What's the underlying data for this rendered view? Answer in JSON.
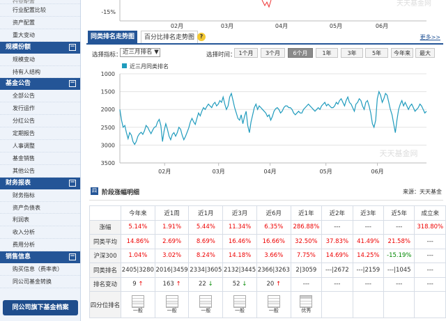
{
  "left_menu": {
    "cut_top": "行业配置",
    "group1": [
      "行业配置比较",
      "资产配置",
      "重大变动"
    ],
    "sec_scale": {
      "title": "规模份额",
      "items": [
        "规模变动",
        "持有人结构"
      ]
    },
    "sec_notice": {
      "title": "基金公告",
      "items": [
        "全部公告",
        "发行运作",
        "分红公告",
        "定期报告",
        "人事调整",
        "基金销售",
        "其他公告"
      ]
    },
    "sec_finance": {
      "title": "财务报表",
      "items": [
        "财务指标",
        "资产负债表",
        "利润表",
        "收入分析",
        "费用分析"
      ]
    },
    "sec_sales": {
      "title": "销售信息",
      "items": [
        "购买信息（费率表）",
        "同公司基金转换"
      ]
    },
    "fund_button": "同公司旗下基金档案",
    "collapse_symbol": "−"
  },
  "top_chart": {
    "ytick": "-15%",
    "months": [
      "02月",
      "03月",
      "04月",
      "05月",
      "06月"
    ],
    "watermark": "天天基金网"
  },
  "rank_tabs": {
    "tab1": "同类排名走势图",
    "tab2": "百分比排名走势图",
    "help": "?",
    "more": "更多>>"
  },
  "controls": {
    "indicator_label": "选择指标：",
    "indicator_value": "近三月排名",
    "time_label": "选择时间：",
    "periods": [
      "1个月",
      "3个月",
      "6个月",
      "1年",
      "3年",
      "5年",
      "今年来",
      "最大"
    ],
    "active_period": "6个月"
  },
  "chart_data": {
    "type": "line",
    "legend": "近三月同类排名",
    "watermark": "天天基金网",
    "ylim": [
      1000,
      3500
    ],
    "yticks": [
      "1000",
      "1500",
      "2000",
      "2500",
      "3000",
      "3500"
    ],
    "inverted_y": true,
    "xticks": [
      {
        "label": "02月",
        "t": 0.146
      },
      {
        "label": "03月",
        "t": 0.322
      },
      {
        "label": "04月",
        "t": 0.49
      },
      {
        "label": "05月",
        "t": 0.672
      },
      {
        "label": "06月",
        "t": 0.84
      }
    ],
    "values": [
      2000,
      2300,
      2500,
      2450,
      2650,
      2820,
      2650,
      2720,
      2900,
      2980,
      2900,
      2750,
      2680,
      2640,
      2700,
      2600,
      2450,
      2500,
      2600,
      2680,
      2580,
      2500,
      2480,
      2350,
      2280,
      2450,
      2900,
      2600,
      2400,
      2550,
      2750,
      2850,
      2700,
      2650,
      2750,
      2650,
      2500,
      2550,
      2720,
      2850,
      2760,
      2640,
      2520,
      2350,
      2250,
      2350,
      2420,
      2250,
      2100,
      2180,
      2050,
      1950,
      2000,
      1920,
      1850,
      1900,
      1950,
      1850,
      1800,
      1900,
      1850,
      1750,
      1800,
      1650,
      1850,
      2000,
      1900,
      1650,
      1550,
      1750,
      1950,
      2100,
      2250,
      2300,
      2150,
      2400,
      2200,
      2050,
      2450,
      2650,
      2350,
      2150,
      1950,
      1850,
      2000,
      1900,
      1950,
      2000,
      2050,
      2100,
      2200,
      2150,
      2300,
      2200,
      2050,
      1980,
      1950,
      2000,
      2100,
      2050,
      1950,
      1900,
      1900,
      1950,
      1950,
      2000,
      2100,
      2150,
      2100,
      2050,
      2100,
      2100,
      2000,
      1950,
      1900,
      1850,
      1900,
      1950,
      2000,
      2050,
      2000,
      1950,
      2000,
      1900,
      1850,
      1800,
      1900,
      1850,
      1900,
      1950,
      1950,
      1900,
      1800,
      1850,
      1750,
      1700,
      1800,
      1900,
      1750,
      1650,
      1800,
      1850,
      1950,
      2050,
      1850,
      1800,
      1700,
      1750,
      1900,
      2000,
      1800,
      1750,
      1900,
      2100,
      2400,
      2500,
      2300,
      1700,
      1500,
      1600,
      1800,
      1700,
      1550,
      1600,
      1800,
      2000,
      2150,
      2400,
      2650,
      2300,
      2000,
      1850,
      1750,
      1900,
      1800,
      1900,
      2000,
      1900,
      1850,
      1950,
      2050,
      2000,
      1950,
      1850,
      1900,
      2000,
      2100,
      2050
    ]
  },
  "perf": {
    "section_icon": "四",
    "title": "阶段涨幅明细",
    "source": "来源：天天基金",
    "headers": [
      "今年来",
      "近1周",
      "近1月",
      "近3月",
      "近6月",
      "近1年",
      "近2年",
      "近3年",
      "近5年",
      "成立来"
    ],
    "rows": [
      {
        "label": "涨幅",
        "cells": [
          "5.14%",
          "1.91%",
          "5.44%",
          "11.34%",
          "6.35%",
          "286.88%",
          "---",
          "---",
          "---",
          "318.80%"
        ],
        "cls": [
          "red",
          "red",
          "red",
          "red",
          "red",
          "red",
          "",
          "",
          "",
          "red"
        ]
      },
      {
        "label": "同类平均",
        "cells": [
          "14.86%",
          "2.69%",
          "8.69%",
          "16.46%",
          "16.66%",
          "32.50%",
          "37.83%",
          "41.49%",
          "21.58%",
          "---"
        ],
        "cls": [
          "red",
          "red",
          "red",
          "red",
          "red",
          "red",
          "red",
          "red",
          "red",
          ""
        ]
      },
      {
        "label": "沪深300",
        "cells": [
          "1.04%",
          "3.02%",
          "8.24%",
          "14.18%",
          "3.66%",
          "7.75%",
          "14.69%",
          "14.25%",
          "-15.19%",
          "---"
        ],
        "cls": [
          "red",
          "red",
          "red",
          "red",
          "red",
          "red",
          "red",
          "red",
          "grn",
          ""
        ]
      },
      {
        "label": "同类排名",
        "cells": [
          "2405|3280",
          "2016|3459",
          "2334|3605",
          "2132|3445",
          "2366|3263",
          "2|3059",
          "---|2672",
          "---|2159",
          "---|1045",
          "---"
        ],
        "cls": [
          "",
          "",
          "",
          "",
          "",
          "",
          "",
          "",
          "",
          ""
        ]
      }
    ],
    "rank_change": {
      "label": "排名变动",
      "cells": [
        {
          "v": "9",
          "d": "up"
        },
        {
          "v": "163",
          "d": "up"
        },
        {
          "v": "22",
          "d": "down"
        },
        {
          "v": "52",
          "d": "down"
        },
        {
          "v": "20",
          "d": "up"
        },
        {
          "v": "---",
          "d": ""
        },
        {
          "v": "---",
          "d": ""
        },
        {
          "v": "---",
          "d": ""
        },
        {
          "v": "---",
          "d": ""
        },
        {
          "v": "---",
          "d": ""
        }
      ]
    },
    "quartile": {
      "label": "四分位排名",
      "cells": [
        "一般",
        "一般",
        "一般",
        "一般",
        "一般",
        "优秀",
        "",
        "",
        "",
        ""
      ]
    }
  }
}
